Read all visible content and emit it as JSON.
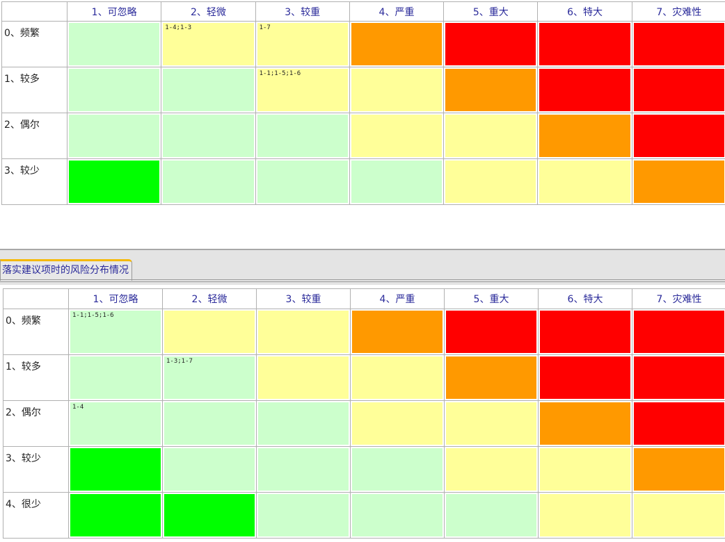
{
  "colors": {
    "L": "#ccffcc",
    "Y": "#ffff99",
    "O": "#ff9900",
    "R": "#ff0000",
    "G": "#00ff00"
  },
  "columns": [
    "1、可忽略",
    "2、轻微",
    "3、较重",
    "4、严重",
    "5、重大",
    "6、特大",
    "7、灾难性"
  ],
  "top": {
    "rows": [
      {
        "label": "0、频繁",
        "cells": [
          "L",
          "Y",
          "Y",
          "O",
          "R",
          "R",
          "R"
        ],
        "texts": [
          "",
          "1-4;1-3",
          "1-7",
          "",
          "",
          "",
          ""
        ]
      },
      {
        "label": "1、较多",
        "cells": [
          "L",
          "L",
          "Y",
          "Y",
          "O",
          "R",
          "R"
        ],
        "texts": [
          "",
          "",
          "1-1;1-5;1-6",
          "",
          "",
          "",
          ""
        ]
      },
      {
        "label": "2、偶尔",
        "cells": [
          "L",
          "L",
          "L",
          "Y",
          "Y",
          "O",
          "R"
        ],
        "texts": [
          "",
          "",
          "",
          "",
          "",
          "",
          ""
        ]
      },
      {
        "label": "3、较少",
        "cells": [
          "G",
          "L",
          "L",
          "L",
          "Y",
          "Y",
          "O"
        ],
        "texts": [
          "",
          "",
          "",
          "",
          "",
          "",
          ""
        ]
      }
    ]
  },
  "tab": {
    "label": "落实建议项时的风险分布情况"
  },
  "bottom": {
    "rows": [
      {
        "label": "0、频繁",
        "cells": [
          "L",
          "Y",
          "Y",
          "O",
          "R",
          "R",
          "R"
        ],
        "texts": [
          "1-1;1-5;1-6",
          "",
          "",
          "",
          "",
          "",
          ""
        ]
      },
      {
        "label": "1、较多",
        "cells": [
          "L",
          "L",
          "Y",
          "Y",
          "O",
          "R",
          "R"
        ],
        "texts": [
          "",
          "1-3;1-7",
          "",
          "",
          "",
          "",
          ""
        ]
      },
      {
        "label": "2、偶尔",
        "cells": [
          "L",
          "L",
          "L",
          "Y",
          "Y",
          "O",
          "R"
        ],
        "texts": [
          "1-4",
          "",
          "",
          "",
          "",
          "",
          ""
        ]
      },
      {
        "label": "3、较少",
        "cells": [
          "G",
          "L",
          "L",
          "L",
          "Y",
          "Y",
          "O"
        ],
        "texts": [
          "",
          "",
          "",
          "",
          "",
          "",
          ""
        ]
      },
      {
        "label": "4、很少",
        "cells": [
          "G",
          "G",
          "L",
          "L",
          "L",
          "Y",
          "Y"
        ],
        "texts": [
          "",
          "",
          "",
          "",
          "",
          "",
          ""
        ]
      }
    ]
  }
}
